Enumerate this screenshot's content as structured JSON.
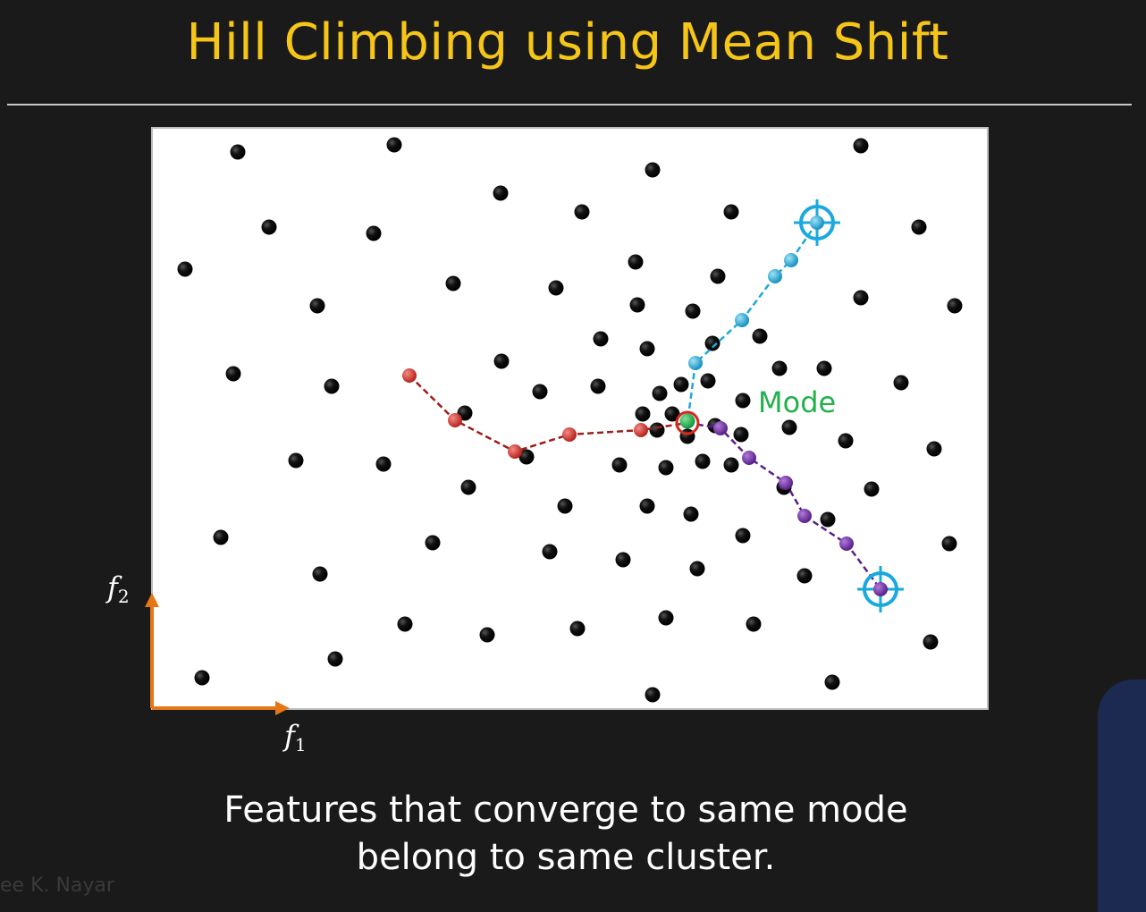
{
  "title": "Hill Climbing using Mean Shift",
  "caption": {
    "line1": "Features that converge to same mode",
    "line2": "belong to same cluster."
  },
  "watermark": "ee K. Nayar",
  "axes": {
    "x_label": "f",
    "x_sub": "1",
    "y_label": "f",
    "y_sub": "2",
    "color": "#e57717"
  },
  "mode_label": "Mode",
  "colors": {
    "title": "#f5c518",
    "mode_label": "#22b14c",
    "point": "#000000",
    "path_red": "#c0302a",
    "path_blue": "#1fa9d6",
    "path_purple": "#6a2e9a",
    "target": "#1aa8e0",
    "mode_point": "#22b14c"
  }
}
